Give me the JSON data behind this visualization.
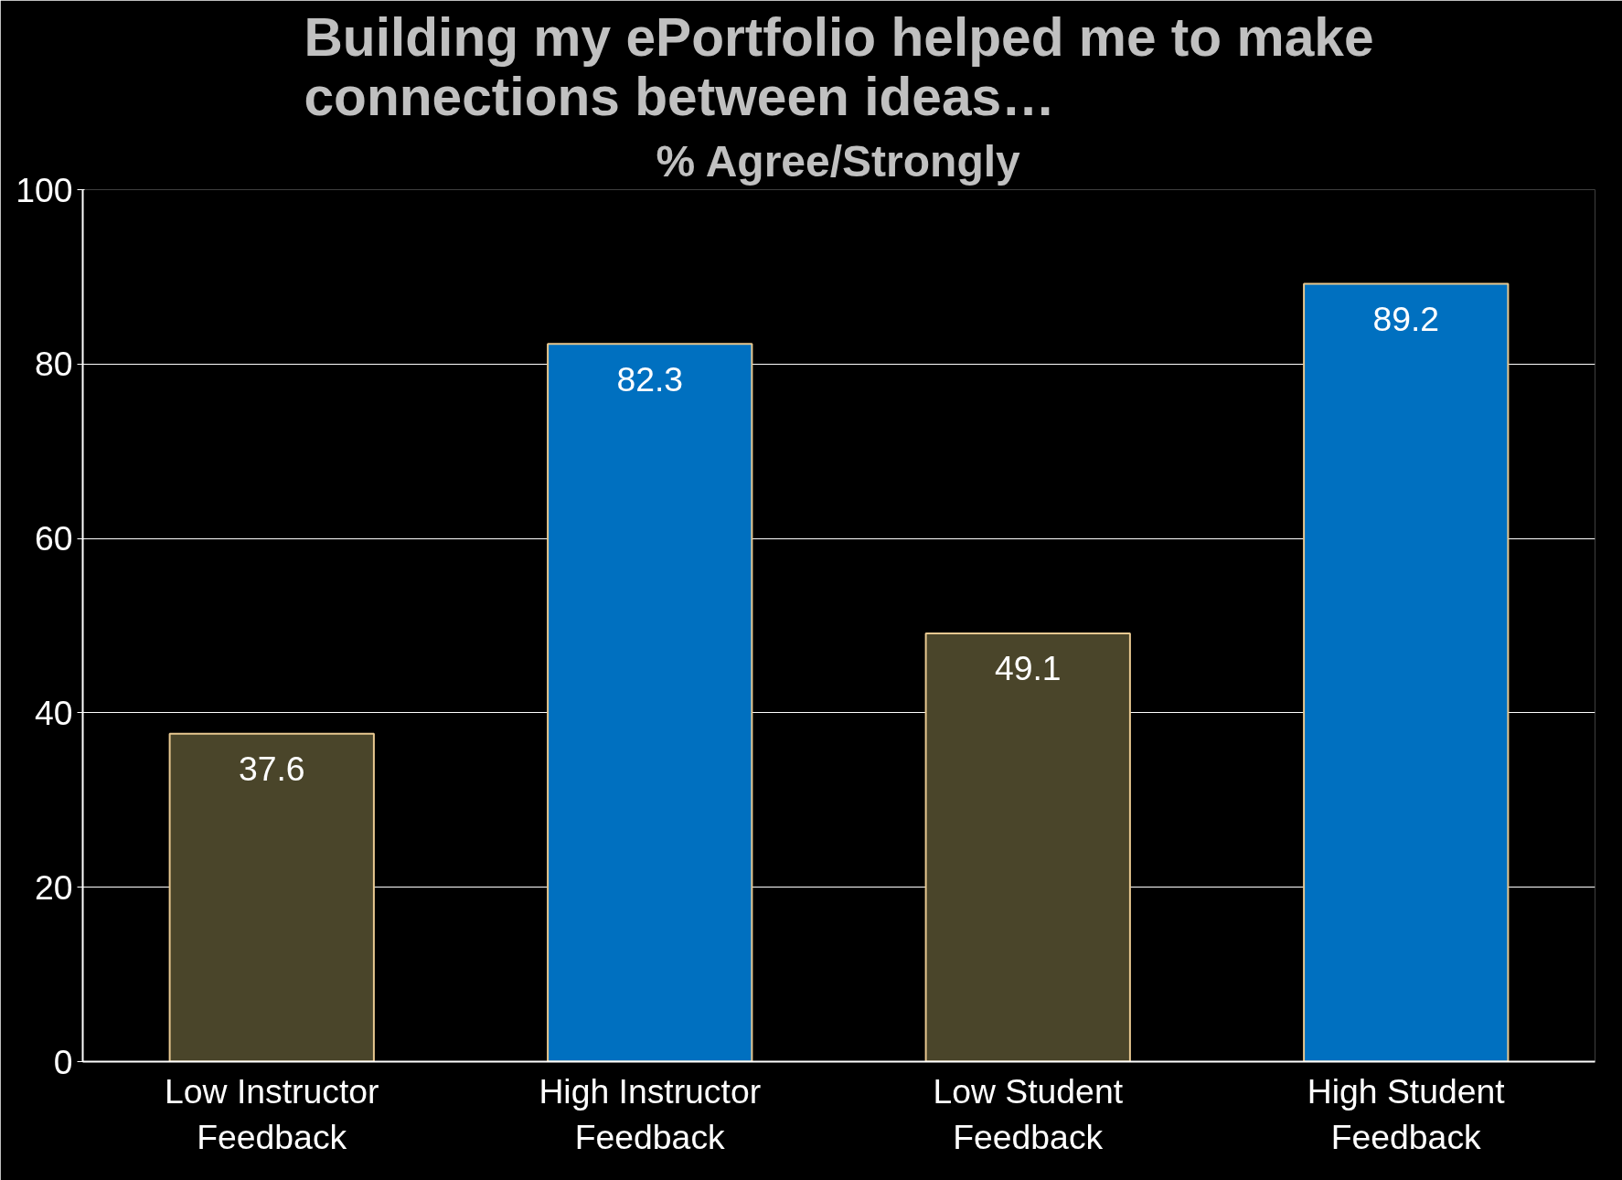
{
  "chart_data": {
    "type": "bar",
    "title": "Building my ePortfolio helped me to make\nconnections between ideas…",
    "subtitle": "% Agree/Strongly",
    "categories": [
      "Low Instructor\nFeedback",
      "High Instructor\nFeedback",
      "Low Student\nFeedback",
      "High Student\nFeedback"
    ],
    "values": [
      37.6,
      82.3,
      49.1,
      89.2
    ],
    "colors": [
      "#4a452a",
      "#0070c0",
      "#4a452a",
      "#0070c0"
    ],
    "ylim": [
      0,
      100
    ],
    "yticks": [
      0,
      20,
      40,
      60,
      80,
      100
    ],
    "grid": "y",
    "data_labels": true
  }
}
